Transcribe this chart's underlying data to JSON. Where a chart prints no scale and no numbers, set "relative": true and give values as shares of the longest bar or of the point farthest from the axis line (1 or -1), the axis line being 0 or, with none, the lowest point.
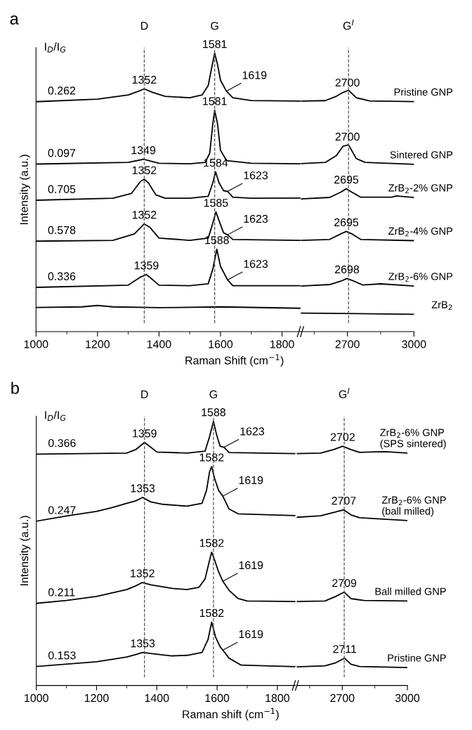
{
  "chart_data": [
    {
      "type": "line",
      "title": "a",
      "xlabel": "Raman Shift (cm$^{−1}$)",
      "ylabel": "Intensity (a.u.)",
      "relative": true,
      "tick_labels": "x",
      "legend": false,
      "grid": false,
      "marker": "none",
      "line_style": "solid",
      "xlim": [
        1000,
        1860
      ],
      "xticks": [
        1000,
        {
          "value": 1100,
          "label": null
        },
        1200,
        {
          "value": 1300,
          "label": null
        },
        1400,
        {
          "value": 1500,
          "label": null
        },
        1600,
        {
          "value": 1700,
          "label": null
        },
        1800
      ],
      "ref_lines": [
        {
          "axis": "x",
          "value": 1352,
          "label": "D",
          "color": "#555555",
          "line_style": "dashed"
        },
        {
          "axis": "x",
          "value": 1581,
          "label": "G",
          "color": "#555555",
          "line_style": "dashed"
        }
      ],
      "annotations": [
        "I$_{D}$/I$_{G}$",
        {
          "text": "0.262",
          "x": 1000,
          "y": 0.826
        },
        {
          "text": "0.097",
          "x": 1000,
          "y": 0.602
        },
        {
          "text": "0.705",
          "x": 1000,
          "y": 0.472
        },
        {
          "text": "0.578",
          "x": 1000,
          "y": 0.325
        },
        {
          "text": "0.336",
          "x": 1000,
          "y": 0.159
        },
        {
          "text": "1352",
          "x": 1352,
          "y": 0.872
        },
        {
          "text": "1581",
          "x": 1581,
          "y": 1.0
        },
        {
          "text": "1619",
          "x": 1619,
          "y": 0.864
        },
        {
          "text": "1581",
          "x": 1581,
          "y": 0.795
        },
        {
          "text": "1349",
          "x": 1349,
          "y": 0.619
        },
        {
          "text": "1352",
          "x": 1352,
          "y": 0.547
        },
        {
          "text": "1584",
          "x": 1584,
          "y": 0.574
        },
        {
          "text": "1623",
          "x": 1623,
          "y": 0.504
        },
        {
          "text": "1352",
          "x": 1352,
          "y": 0.387
        },
        {
          "text": "1585",
          "x": 1585,
          "y": 0.43
        },
        {
          "text": "1623",
          "x": 1623,
          "y": 0.348
        },
        {
          "text": "1359",
          "x": 1359,
          "y": 0.205
        },
        {
          "text": "1588",
          "x": 1588,
          "y": 0.296
        },
        {
          "text": "1623",
          "x": 1623,
          "y": 0.186
        }
      ],
      "series": [
        {
          "color": "#000000",
          "x": [
            1000,
            1200,
            1300,
            1330,
            1352,
            1380,
            1420,
            1500,
            1540,
            1560,
            1572,
            1581,
            1590,
            1600,
            1619,
            1640,
            1700,
            1860
          ],
          "values": [
            0.826,
            0.835,
            0.85,
            0.862,
            0.872,
            0.859,
            0.845,
            0.84,
            0.85,
            0.884,
            0.952,
            1.0,
            0.961,
            0.903,
            0.864,
            0.84,
            0.83,
            0.828
          ]
        },
        {
          "color": "#000000",
          "x": [
            1000,
            1300,
            1349,
            1400,
            1500,
            1550,
            1565,
            1575,
            1581,
            1590,
            1600,
            1620,
            1700,
            1860
          ],
          "values": [
            0.602,
            0.608,
            0.619,
            0.605,
            0.603,
            0.608,
            0.641,
            0.748,
            0.795,
            0.748,
            0.651,
            0.614,
            0.605,
            0.603
          ]
        },
        {
          "color": "#000000",
          "x": [
            1000,
            1250,
            1310,
            1340,
            1352,
            1365,
            1390,
            1420,
            1500,
            1560,
            1575,
            1584,
            1595,
            1610,
            1623,
            1640,
            1700,
            1860
          ],
          "values": [
            0.472,
            0.479,
            0.496,
            0.54,
            0.547,
            0.535,
            0.491,
            0.479,
            0.479,
            0.486,
            0.535,
            0.574,
            0.535,
            0.506,
            0.504,
            0.483,
            0.479,
            0.48
          ]
        },
        {
          "color": "#000000",
          "x": [
            1000,
            1250,
            1320,
            1352,
            1370,
            1400,
            1500,
            1560,
            1575,
            1585,
            1595,
            1610,
            1623,
            1640,
            1860
          ],
          "values": [
            0.325,
            0.328,
            0.351,
            0.387,
            0.375,
            0.336,
            0.328,
            0.336,
            0.39,
            0.43,
            0.399,
            0.355,
            0.348,
            0.331,
            0.328
          ]
        },
        {
          "color": "#000000",
          "x": [
            1000,
            1300,
            1340,
            1359,
            1380,
            1400,
            1500,
            1560,
            1575,
            1588,
            1600,
            1623,
            1640,
            1860
          ],
          "values": [
            0.159,
            0.167,
            0.196,
            0.205,
            0.186,
            0.167,
            0.165,
            0.172,
            0.225,
            0.296,
            0.234,
            0.186,
            0.165,
            0.165
          ]
        },
        {
          "color": "#000000",
          "x": [
            1000,
            1150,
            1200,
            1250,
            1400,
            1600,
            1860
          ],
          "values": [
            0.087,
            0.089,
            0.094,
            0.089,
            0.086,
            0.089,
            0.084
          ]
        }
      ]
    },
    {
      "type": "line",
      "relative": true,
      "tick_labels": "x",
      "legend": false,
      "grid": false,
      "marker": "none",
      "line_style": "solid",
      "xlim": [
        2490,
        3000
      ],
      "xticks": [
        {
          "value": 2550,
          "label": null
        },
        2700,
        {
          "value": 2850,
          "label": null
        },
        3000
      ],
      "ref_lines": [
        {
          "axis": "x",
          "value": 2705,
          "label": "G$^{I}$",
          "color": "#555555",
          "line_style": "dashed"
        }
      ],
      "annotations": [
        {
          "text": "2700",
          "x": 2700,
          "y": 0.994
        },
        {
          "text": "2700",
          "x": 2700,
          "y": 0.77
        },
        {
          "text": "2695",
          "x": 2695,
          "y": 0.592
        },
        {
          "text": "2695",
          "x": 2695,
          "y": 0.415
        },
        {
          "text": "2698",
          "x": 2698,
          "y": 0.22
        }
      ],
      "series": [
        {
          "name": "Pristine GNP",
          "color": "#000000",
          "x": [
            2490,
            2600,
            2650,
            2680,
            2705,
            2740,
            2800,
            3000
          ],
          "values": [
            0.955,
            0.957,
            0.975,
            0.991,
            1.0,
            0.969,
            0.956,
            0.953
          ]
        },
        {
          "name": "Sintered GNP",
          "color": "#000000",
          "x": [
            2490,
            2600,
            2650,
            2680,
            2705,
            2740,
            2780,
            3000
          ],
          "values": [
            0.696,
            0.701,
            0.729,
            0.768,
            0.774,
            0.717,
            0.701,
            0.693
          ]
        },
        {
          "name": "ZrB$_{2}$-2% GNP",
          "color": "#000000",
          "x": [
            2490,
            2620,
            2670,
            2695,
            2720,
            2760,
            2900,
            2920,
            3000
          ],
          "values": [
            0.55,
            0.556,
            0.578,
            0.592,
            0.578,
            0.557,
            0.557,
            0.562,
            0.556
          ]
        },
        {
          "name": "ZrB$_{2}$-4% GNP",
          "color": "#000000",
          "x": [
            2490,
            2620,
            2670,
            2695,
            2720,
            2760,
            3000
          ],
          "values": [
            0.378,
            0.382,
            0.405,
            0.415,
            0.405,
            0.382,
            0.377
          ]
        },
        {
          "name": "ZrB$_{2}$-6% GNP",
          "color": "#000000",
          "x": [
            2490,
            2620,
            2670,
            2698,
            2730,
            2770,
            2850,
            3000
          ],
          "values": [
            0.189,
            0.195,
            0.209,
            0.22,
            0.209,
            0.193,
            0.198,
            0.189
          ]
        },
        {
          "name": "ZrB$_{2}$",
          "color": "#000000",
          "x": [
            2490,
            3000
          ],
          "values": [
            0.077,
            0.072
          ]
        }
      ]
    },
    {
      "type": "line",
      "title": "b",
      "xlabel": "Raman shift (cm$^{−1}$)",
      "ylabel": "Intensity (a.u.)",
      "relative": true,
      "tick_labels": "x",
      "legend": false,
      "grid": false,
      "marker": "none",
      "line_style": "solid",
      "xlim": [
        1000,
        1860
      ],
      "xticks": [
        1000,
        {
          "value": 1100,
          "label": null
        },
        1200,
        {
          "value": 1300,
          "label": null
        },
        1400,
        {
          "value": 1500,
          "label": null
        },
        1600,
        {
          "value": 1700,
          "label": null
        },
        1800
      ],
      "ref_lines": [
        {
          "axis": "x",
          "value": 1359,
          "label": "D",
          "color": "#555555",
          "line_style": "dashed"
        },
        {
          "axis": "x",
          "value": 1588,
          "label": "G",
          "color": "#555555",
          "line_style": "dashed"
        }
      ],
      "annotations": [
        "I$_{D}$/I$_{G}$",
        {
          "text": "0.366",
          "x": 1000,
          "y": 0.876
        },
        {
          "text": "0.247",
          "x": 1000,
          "y": 0.622
        },
        {
          "text": "0.211",
          "x": 1000,
          "y": 0.311
        },
        {
          "text": "0.153",
          "x": 1000,
          "y": 0.072
        },
        {
          "text": "1359",
          "x": 1359,
          "y": 0.92
        },
        {
          "text": "1588",
          "x": 1588,
          "y": 1.0
        },
        {
          "text": "1623",
          "x": 1623,
          "y": 0.902
        },
        {
          "text": "1353",
          "x": 1353,
          "y": 0.712
        },
        {
          "text": "1582",
          "x": 1582,
          "y": 0.829
        },
        {
          "text": "1619",
          "x": 1619,
          "y": 0.717
        },
        {
          "text": "1352",
          "x": 1352,
          "y": 0.39
        },
        {
          "text": "1582",
          "x": 1582,
          "y": 0.505
        },
        {
          "text": "1619",
          "x": 1619,
          "y": 0.395
        },
        {
          "text": "1353",
          "x": 1353,
          "y": 0.125
        },
        {
          "text": "1582",
          "x": 1582,
          "y": 0.24
        },
        {
          "text": "1619",
          "x": 1619,
          "y": 0.134
        }
      ],
      "series": [
        {
          "color": "#000000",
          "x": [
            1000,
            1300,
            1330,
            1359,
            1380,
            1400,
            1500,
            1560,
            1575,
            1588,
            1598,
            1610,
            1623,
            1640,
            1860
          ],
          "values": [
            0.876,
            0.88,
            0.893,
            0.92,
            0.902,
            0.884,
            0.88,
            0.887,
            0.942,
            1.0,
            0.951,
            0.906,
            0.902,
            0.882,
            0.878
          ]
        },
        {
          "color": "#000000",
          "x": [
            1000,
            1100,
            1200,
            1250,
            1300,
            1330,
            1353,
            1380,
            1420,
            1500,
            1550,
            1565,
            1575,
            1582,
            1592,
            1605,
            1619,
            1640,
            1670,
            1860
          ],
          "values": [
            0.622,
            0.642,
            0.659,
            0.673,
            0.69,
            0.699,
            0.712,
            0.695,
            0.686,
            0.679,
            0.69,
            0.739,
            0.809,
            0.829,
            0.783,
            0.739,
            0.717,
            0.668,
            0.65,
            0.643
          ]
        },
        {
          "color": "#000000",
          "x": [
            1000,
            1100,
            1200,
            1300,
            1330,
            1352,
            1380,
            1450,
            1500,
            1540,
            1560,
            1575,
            1582,
            1592,
            1605,
            1619,
            1640,
            1670,
            1700,
            1860
          ],
          "values": [
            0.311,
            0.322,
            0.337,
            0.363,
            0.377,
            0.39,
            0.381,
            0.368,
            0.363,
            0.372,
            0.403,
            0.474,
            0.505,
            0.474,
            0.43,
            0.395,
            0.36,
            0.329,
            0.32,
            0.318
          ]
        },
        {
          "color": "#000000",
          "x": [
            1000,
            1200,
            1300,
            1330,
            1353,
            1380,
            1450,
            1500,
            1550,
            1570,
            1582,
            1595,
            1610,
            1619,
            1640,
            1680,
            1860
          ],
          "values": [
            0.072,
            0.09,
            0.108,
            0.117,
            0.125,
            0.121,
            0.112,
            0.114,
            0.125,
            0.174,
            0.24,
            0.183,
            0.147,
            0.134,
            0.103,
            0.077,
            0.071
          ]
        }
      ]
    },
    {
      "type": "line",
      "relative": true,
      "tick_labels": "x",
      "legend": false,
      "grid": false,
      "marker": "none",
      "line_style": "solid",
      "xlim": [
        2490,
        3000
      ],
      "xticks": [
        {
          "value": 2550,
          "label": null
        },
        2700,
        {
          "value": 2850,
          "label": null
        },
        3000
      ],
      "ref_lines": [
        {
          "axis": "x",
          "value": 2709,
          "label": "G$^{I}$",
          "color": "#555555",
          "line_style": "dashed"
        }
      ],
      "annotations": [
        {
          "text": "2702",
          "x": 2702,
          "y": 1.0
        },
        {
          "text": "2707",
          "x": 2707,
          "y": 0.734
        },
        {
          "text": "2709",
          "x": 2709,
          "y": 0.39
        },
        {
          "text": "2711",
          "x": 2711,
          "y": 0.114
        }
      ],
      "series": [
        {
          "name": "ZrB$_{2}$-6% GNP\n(SPS sintered)",
          "color": "#000000",
          "x": [
            2490,
            2600,
            2660,
            2702,
            2740,
            2780,
            2850,
            2900,
            3000
          ],
          "values": [
            0.969,
            0.971,
            0.986,
            1.0,
            0.986,
            0.974,
            0.976,
            0.977,
            0.971
          ]
        },
        {
          "name": "ZrB$_{2}$-6% GNP\n(ball milled)",
          "color": "#000000",
          "x": [
            2490,
            2600,
            2660,
            2707,
            2740,
            2780,
            3000
          ],
          "values": [
            0.703,
            0.709,
            0.723,
            0.734,
            0.713,
            0.701,
            0.689
          ]
        },
        {
          "name": "Ball milled GNP",
          "color": "#000000",
          "x": [
            2490,
            2620,
            2670,
            2709,
            2740,
            2800,
            3000
          ],
          "values": [
            0.351,
            0.353,
            0.372,
            0.39,
            0.363,
            0.355,
            0.353
          ]
        },
        {
          "name": "Pristine GNP",
          "color": "#000000",
          "x": [
            2490,
            2620,
            2670,
            2711,
            2740,
            2780,
            3000
          ],
          "values": [
            0.078,
            0.082,
            0.095,
            0.114,
            0.089,
            0.079,
            0.075
          ]
        }
      ]
    }
  ]
}
